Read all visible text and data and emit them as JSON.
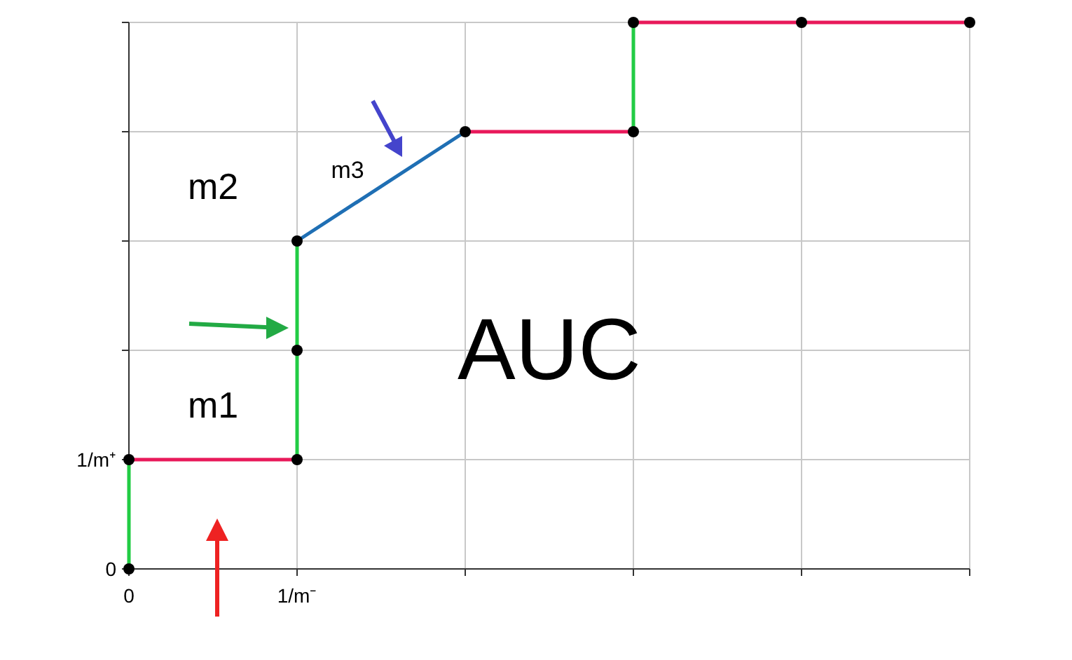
{
  "chart_data": {
    "type": "line",
    "xlim": [
      0,
      5
    ],
    "ylim": [
      0,
      5
    ],
    "xticks": [
      0,
      {
        "value": 1,
        "label": "1/m⁻"
      },
      {
        "value": 2,
        "label": null
      },
      {
        "value": 3,
        "label": null
      },
      {
        "value": 4,
        "label": null
      },
      {
        "value": 5,
        "label": null
      }
    ],
    "yticks": [
      0,
      {
        "value": 1,
        "label": "1/m⁺"
      },
      {
        "value": 2,
        "label": null
      },
      {
        "value": 3,
        "label": null
      },
      {
        "value": 4,
        "label": null
      },
      {
        "value": 5,
        "label": null
      }
    ],
    "grid": true,
    "line_style": "solid",
    "series": [
      {
        "color": "#22cc44",
        "x": [
          0,
          0
        ],
        "values": [
          0,
          1
        ]
      },
      {
        "color": "#e8195a",
        "x": [
          0,
          1
        ],
        "values": [
          1,
          1
        ]
      },
      {
        "color": "#22cc44",
        "x": [
          1,
          1
        ],
        "values": [
          1,
          3
        ]
      },
      {
        "color": "#1f6fb4",
        "x": [
          1,
          2
        ],
        "values": [
          3,
          4
        ]
      },
      {
        "color": "#e8195a",
        "x": [
          2,
          3
        ],
        "values": [
          4,
          4
        ]
      },
      {
        "color": "#22cc44",
        "x": [
          3,
          3
        ],
        "values": [
          4,
          5
        ]
      },
      {
        "color": "#e8195a",
        "x": [
          3,
          5
        ],
        "values": [
          5,
          5
        ]
      },
      {
        "type": "scatter",
        "color": "#000000",
        "x": [
          0,
          0,
          1,
          1,
          1,
          2,
          3,
          3,
          4,
          5
        ],
        "values": [
          0,
          1,
          1,
          2,
          3,
          4,
          4,
          5,
          5,
          5
        ]
      }
    ],
    "annotations": [
      "m1",
      "m2",
      "m3",
      "AUC"
    ]
  }
}
